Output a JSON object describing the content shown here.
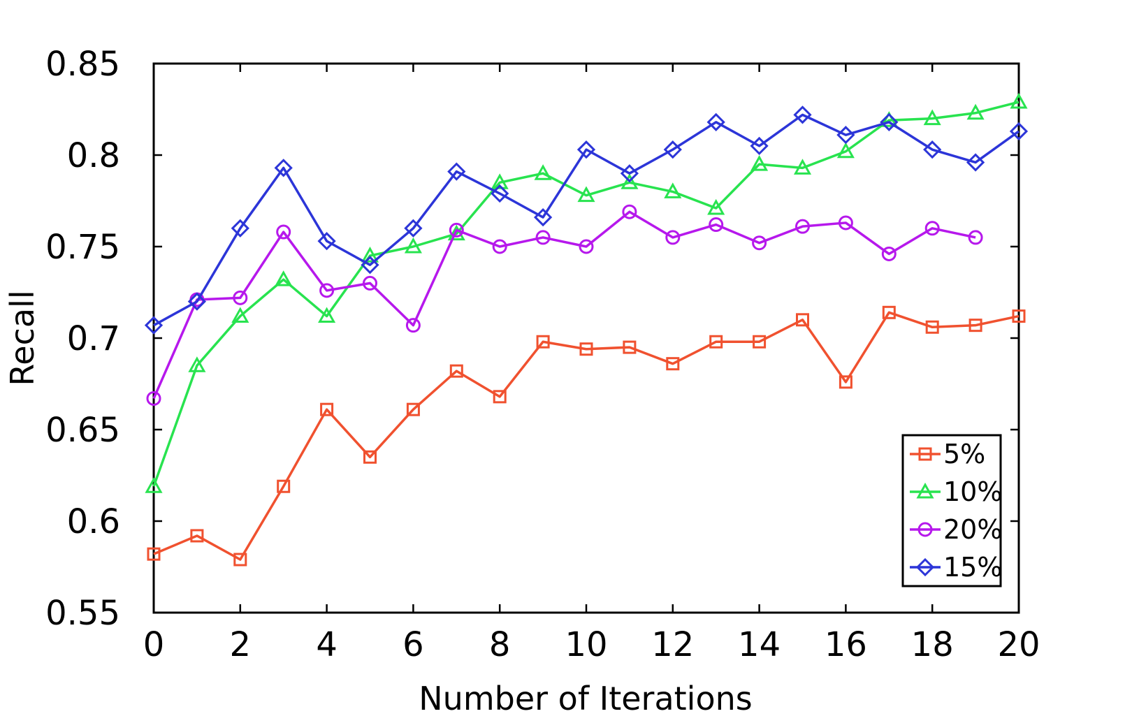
{
  "chart_data": {
    "type": "line",
    "title": "",
    "xlabel": "Number of Iterations",
    "ylabel": "Recall",
    "xlim": [
      0,
      20
    ],
    "ylim": [
      0.55,
      0.85
    ],
    "xticks": [
      0,
      2,
      4,
      6,
      8,
      10,
      12,
      14,
      16,
      18,
      20
    ],
    "xtick_labels": [
      "0",
      "2",
      "4",
      "6",
      "8",
      "10",
      "12",
      "14",
      "16",
      "18",
      "20"
    ],
    "yticks": [
      0.55,
      0.6,
      0.65,
      0.7,
      0.75,
      0.8,
      0.85
    ],
    "ytick_labels": [
      "0.55",
      "0.6",
      "0.65",
      "0.7",
      "0.75",
      "0.8",
      "0.85"
    ],
    "grid": false,
    "legend_position": "bottom-right",
    "series": [
      {
        "name": "5%",
        "color": "#f0512f",
        "marker": "square",
        "x": [
          0,
          1,
          2,
          3,
          4,
          5,
          6,
          7,
          8,
          9,
          10,
          11,
          12,
          13,
          14,
          15,
          16,
          17,
          18,
          19,
          20
        ],
        "values": [
          0.582,
          0.592,
          0.579,
          0.619,
          0.661,
          0.635,
          0.661,
          0.682,
          0.668,
          0.698,
          0.694,
          0.695,
          0.686,
          0.698,
          0.698,
          0.71,
          0.676,
          0.714,
          0.706,
          0.707,
          0.712
        ]
      },
      {
        "name": "10%",
        "color": "#28e34f",
        "marker": "triangle",
        "x": [
          0,
          1,
          2,
          3,
          4,
          5,
          6,
          7,
          8,
          9,
          10,
          11,
          12,
          13,
          14,
          15,
          16,
          17,
          18,
          19,
          20
        ],
        "values": [
          0.619,
          0.685,
          0.712,
          0.732,
          0.712,
          0.745,
          0.75,
          0.757,
          0.785,
          0.79,
          0.778,
          0.785,
          0.78,
          0.771,
          0.795,
          0.793,
          0.802,
          0.819,
          0.82,
          0.823,
          0.829
        ]
      },
      {
        "name": "20%",
        "color": "#b618ec",
        "marker": "circle",
        "x": [
          0,
          1,
          2,
          3,
          4,
          5,
          6,
          7,
          8,
          9,
          10,
          11,
          12,
          13,
          14,
          15,
          16,
          17,
          18,
          19
        ],
        "values": [
          0.667,
          0.721,
          0.722,
          0.758,
          0.726,
          0.73,
          0.707,
          0.759,
          0.75,
          0.755,
          0.75,
          0.769,
          0.755,
          0.762,
          0.752,
          0.761,
          0.763,
          0.746,
          0.76,
          0.755
        ]
      },
      {
        "name": "15%",
        "color": "#2c35d8",
        "marker": "diamond",
        "x": [
          0,
          1,
          2,
          3,
          4,
          5,
          6,
          7,
          8,
          9,
          10,
          11,
          12,
          13,
          14,
          15,
          16,
          17,
          18,
          19,
          20
        ],
        "values": [
          0.707,
          0.72,
          0.76,
          0.793,
          0.753,
          0.74,
          0.76,
          0.791,
          0.779,
          0.766,
          0.803,
          0.79,
          0.803,
          0.818,
          0.805,
          0.822,
          0.811,
          0.818,
          0.803,
          0.796,
          0.813
        ]
      }
    ]
  }
}
